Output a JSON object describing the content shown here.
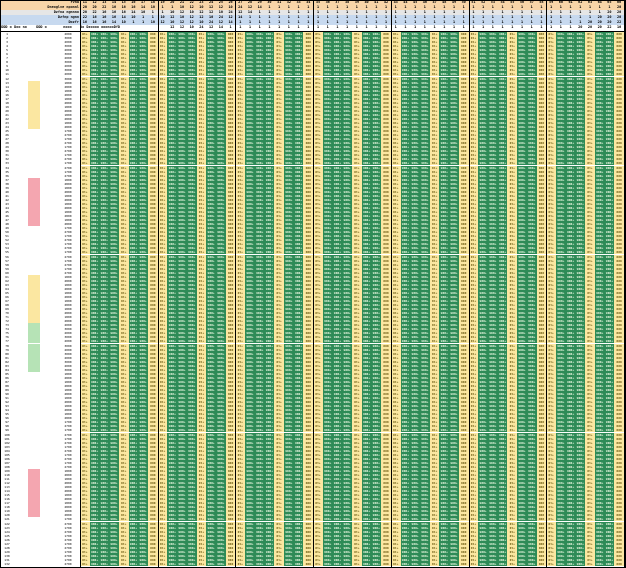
{
  "sheet": {
    "header_rows": [
      {
        "label": "Fvna",
        "bg": "#f8d5a8"
      },
      {
        "label": "Dneoglve nponnl",
        "bg": "#f8d5a8"
      },
      {
        "label": "Dzfna ngnnno",
        "bg": "#e6e6e6"
      },
      {
        "label": "Dzfnp ngnn",
        "bg": "#c7d9ef"
      },
      {
        "label": "Dozfr",
        "bg": "#c7d9ef"
      },
      {
        "label": "Dozfr",
        "bg": "#ffffff"
      }
    ],
    "left_headers": [
      "DDD o",
      "Doo no",
      "DDD o",
      "nooo"
    ],
    "cont_header": "Do Dzoooo ooonooDfD",
    "col_numbers": [
      "11",
      "12",
      "13",
      "14",
      "15",
      "16",
      "17",
      "18",
      "19",
      "20",
      "21",
      "22",
      "23",
      "24",
      "25",
      "26",
      "27",
      "28",
      "29",
      "30",
      "31",
      "32",
      "33",
      "34",
      "35",
      "36",
      "37",
      "38",
      "39",
      "40",
      "41",
      "42",
      "43",
      "44",
      "45",
      "46",
      "47",
      "48",
      "49",
      "50",
      "51",
      "52",
      "53",
      "54",
      "55",
      "56",
      "57",
      "58",
      "59",
      "60",
      "61",
      "62",
      "63",
      "64",
      "65",
      "66"
    ],
    "header_values": [
      "20",
      "20",
      "20",
      "22",
      "16",
      "16",
      "16",
      "14",
      "10",
      "1",
      "1",
      "10",
      "12",
      "10",
      "12",
      "12",
      "10",
      "24",
      "12",
      "14",
      "1",
      "1",
      "1",
      "1",
      "1",
      "1",
      "1",
      "1",
      "1",
      "1",
      "1",
      "1",
      "1",
      "1",
      "1",
      "1",
      "1",
      "1",
      "1",
      "1",
      "1",
      "1",
      "1",
      "1",
      "1",
      "1",
      "1",
      "1",
      "1",
      "1",
      "1",
      "1",
      "1",
      "1",
      "1",
      "1"
    ],
    "row_values": [
      "1",
      "2",
      "3",
      "4",
      "5",
      "6",
      "7",
      "8",
      "9",
      "10",
      "11",
      "12",
      "13",
      "14",
      "15",
      "16",
      "17",
      "18",
      "19",
      "20",
      "21",
      "22",
      "23",
      "24",
      "25",
      "26",
      "27",
      "28",
      "29",
      "30",
      "31",
      "32",
      "33",
      "34",
      "35",
      "36",
      "37",
      "38",
      "39",
      "40",
      "41",
      "42",
      "43",
      "44",
      "45",
      "46",
      "47",
      "48",
      "49",
      "50",
      "51",
      "52",
      "53",
      "54",
      "55",
      "56",
      "57",
      "58",
      "59",
      "60",
      "61",
      "62",
      "63",
      "64",
      "65",
      "66",
      "67",
      "68",
      "69",
      "70",
      "71",
      "72",
      "73",
      "74",
      "75",
      "76",
      "77",
      "78",
      "79",
      "80",
      "81",
      "82",
      "83",
      "84",
      "85",
      "86",
      "87",
      "88",
      "89",
      "90",
      "91",
      "92",
      "93",
      "94",
      "95",
      "96",
      "97",
      "98",
      "99",
      "100",
      "101",
      "102",
      "103",
      "104",
      "105",
      "106",
      "107",
      "108",
      "109",
      "110",
      "111",
      "112",
      "113",
      "114",
      "115",
      "116",
      "117",
      "118",
      "119",
      "120",
      "121",
      "122",
      "123",
      "124",
      "125",
      "126",
      "127",
      "128",
      "129",
      "130",
      "131",
      "132"
    ],
    "row_codes": [
      "2000",
      "3000",
      "2000",
      "3000",
      "2000",
      "3000",
      "2000",
      "3000",
      "2000",
      "3000",
      "2000",
      "3000",
      "1800",
      "2800",
      "1800",
      "2800",
      "1800",
      "2800",
      "1800",
      "2800",
      "1800",
      "2800",
      "1800",
      "2800",
      "1700",
      "2700",
      "1700",
      "2700",
      "1700",
      "2700",
      "1700",
      "2700",
      "1700",
      "2700",
      "1700",
      "2700",
      "1800",
      "2800",
      "1800",
      "2800",
      "1800",
      "2800",
      "1800",
      "2800",
      "1800",
      "2800",
      "1800",
      "2800",
      "1700",
      "2700",
      "1700",
      "2700",
      "1700",
      "2700",
      "1700",
      "2700",
      "1700",
      "2700",
      "1700",
      "2700",
      "1800",
      "2800",
      "1800",
      "2800",
      "1800",
      "2800",
      "1800",
      "2800",
      "1800",
      "2800",
      "1800",
      "2800",
      "2000",
      "3000",
      "2000",
      "3000",
      "2000",
      "3000",
      "2000",
      "3000",
      "2000",
      "3000",
      "2000",
      "3000",
      "1800",
      "2800",
      "1800",
      "2800",
      "1800",
      "2800",
      "1800",
      "2800",
      "1800",
      "2800",
      "1800",
      "2800",
      "1700",
      "2700",
      "1700",
      "2700",
      "1700",
      "2700",
      "1700",
      "2700",
      "1700",
      "2700",
      "1700",
      "2700",
      "1800",
      "2800",
      "1800",
      "2800",
      "1800",
      "2800",
      "1800",
      "2800",
      "1800",
      "2800",
      "1800",
      "2800",
      "1700",
      "2700",
      "1700",
      "2700",
      "1700",
      "2700",
      "1700",
      "2700",
      "1700",
      "2700",
      "1700",
      "2700"
    ],
    "cell_text_a": "0t+",
    "cell_text_b": "900+",
    "cell_text_c": "000",
    "colors": {
      "yellow": "#fbe7a1",
      "green": "#2e8b57",
      "green_light": "#b6e3b6",
      "pink": "#f4a6b0",
      "header_blue": "#c7d9ef",
      "header_orange": "#f8d5a8",
      "text_green": "#1a6b2a",
      "text_yellow": "#6b5a10",
      "border": "#000000"
    }
  }
}
